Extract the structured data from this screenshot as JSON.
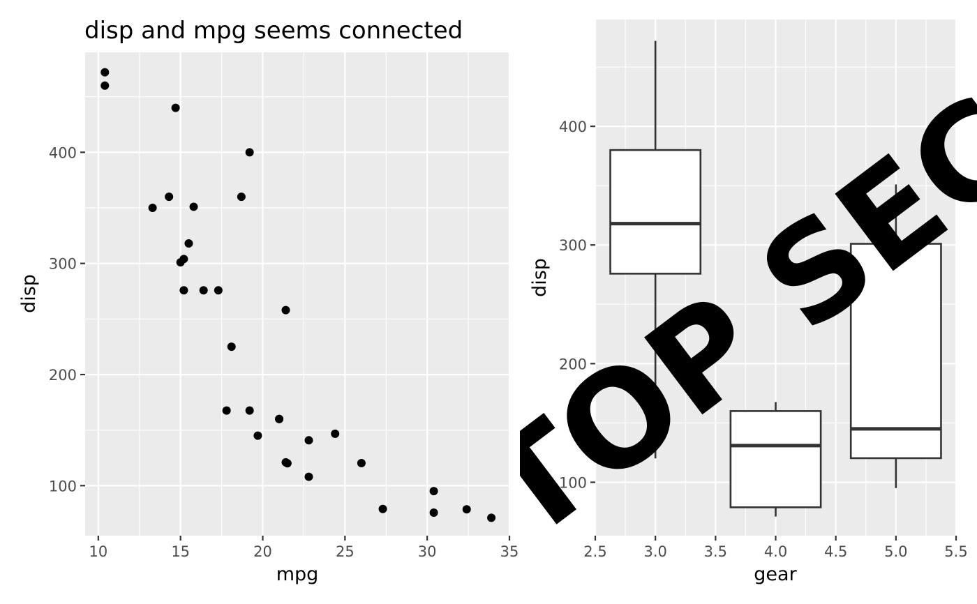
{
  "chart_data": [
    {
      "type": "scatter",
      "title": "disp and mpg seems connected",
      "xlabel": "mpg",
      "ylabel": "disp",
      "xlim": [
        9.2,
        35
      ],
      "ylim": [
        55,
        490
      ],
      "x_ticks": [
        10,
        15,
        20,
        25,
        30,
        35
      ],
      "y_ticks": [
        100,
        200,
        300,
        400
      ],
      "x_tick_labels": [
        "10",
        "15",
        "20",
        "25",
        "30",
        "35"
      ],
      "y_tick_labels": [
        "100",
        "200",
        "300",
        "400"
      ],
      "grid": true,
      "points": [
        {
          "x": 10.4,
          "y": 472
        },
        {
          "x": 10.4,
          "y": 460
        },
        {
          "x": 14.7,
          "y": 440
        },
        {
          "x": 19.2,
          "y": 400
        },
        {
          "x": 14.3,
          "y": 360
        },
        {
          "x": 18.7,
          "y": 360
        },
        {
          "x": 15.8,
          "y": 351
        },
        {
          "x": 13.3,
          "y": 350
        },
        {
          "x": 15.5,
          "y": 318
        },
        {
          "x": 15.2,
          "y": 304
        },
        {
          "x": 15.0,
          "y": 301
        },
        {
          "x": 15.2,
          "y": 275.8
        },
        {
          "x": 16.4,
          "y": 275.8
        },
        {
          "x": 17.3,
          "y": 275.8
        },
        {
          "x": 21.4,
          "y": 258
        },
        {
          "x": 18.1,
          "y": 225
        },
        {
          "x": 17.8,
          "y": 167.6
        },
        {
          "x": 19.2,
          "y": 167.6
        },
        {
          "x": 21.0,
          "y": 160
        },
        {
          "x": 21.0,
          "y": 160
        },
        {
          "x": 24.4,
          "y": 146.7
        },
        {
          "x": 19.7,
          "y": 145
        },
        {
          "x": 22.8,
          "y": 140.8
        },
        {
          "x": 21.4,
          "y": 121
        },
        {
          "x": 21.5,
          "y": 120.1
        },
        {
          "x": 26.0,
          "y": 120.3
        },
        {
          "x": 22.8,
          "y": 108
        },
        {
          "x": 30.4,
          "y": 95.1
        },
        {
          "x": 27.3,
          "y": 79
        },
        {
          "x": 32.4,
          "y": 78.7
        },
        {
          "x": 30.4,
          "y": 75.7
        },
        {
          "x": 33.9,
          "y": 71.1
        }
      ]
    },
    {
      "type": "boxplot",
      "xlabel": "gear",
      "ylabel": "disp",
      "xlim": [
        2.5,
        5.5
      ],
      "ylim": [
        55,
        490
      ],
      "x_ticks": [
        2.5,
        3.0,
        3.5,
        4.0,
        4.5,
        5.0,
        5.5
      ],
      "y_ticks": [
        100,
        200,
        300,
        400
      ],
      "x_tick_labels": [
        "2.5",
        "3.0",
        "3.5",
        "4.0",
        "4.5",
        "5.0",
        "5.5"
      ],
      "y_tick_labels": [
        "100",
        "200",
        "300",
        "400"
      ],
      "grid": true,
      "boxes": [
        {
          "x": 3.0,
          "whisker_low": 120.1,
          "q1": 275.8,
          "median": 318,
          "q3": 380,
          "whisker_high": 472
        },
        {
          "x": 4.0,
          "whisker_low": 71.1,
          "q1": 78.9,
          "median": 130.9,
          "q3": 160,
          "whisker_high": 167.6
        },
        {
          "x": 5.0,
          "whisker_low": 95.1,
          "q1": 120.3,
          "median": 145,
          "q3": 301,
          "whisker_high": 351
        }
      ]
    }
  ],
  "watermark": {
    "text": "TOP SECRET"
  }
}
